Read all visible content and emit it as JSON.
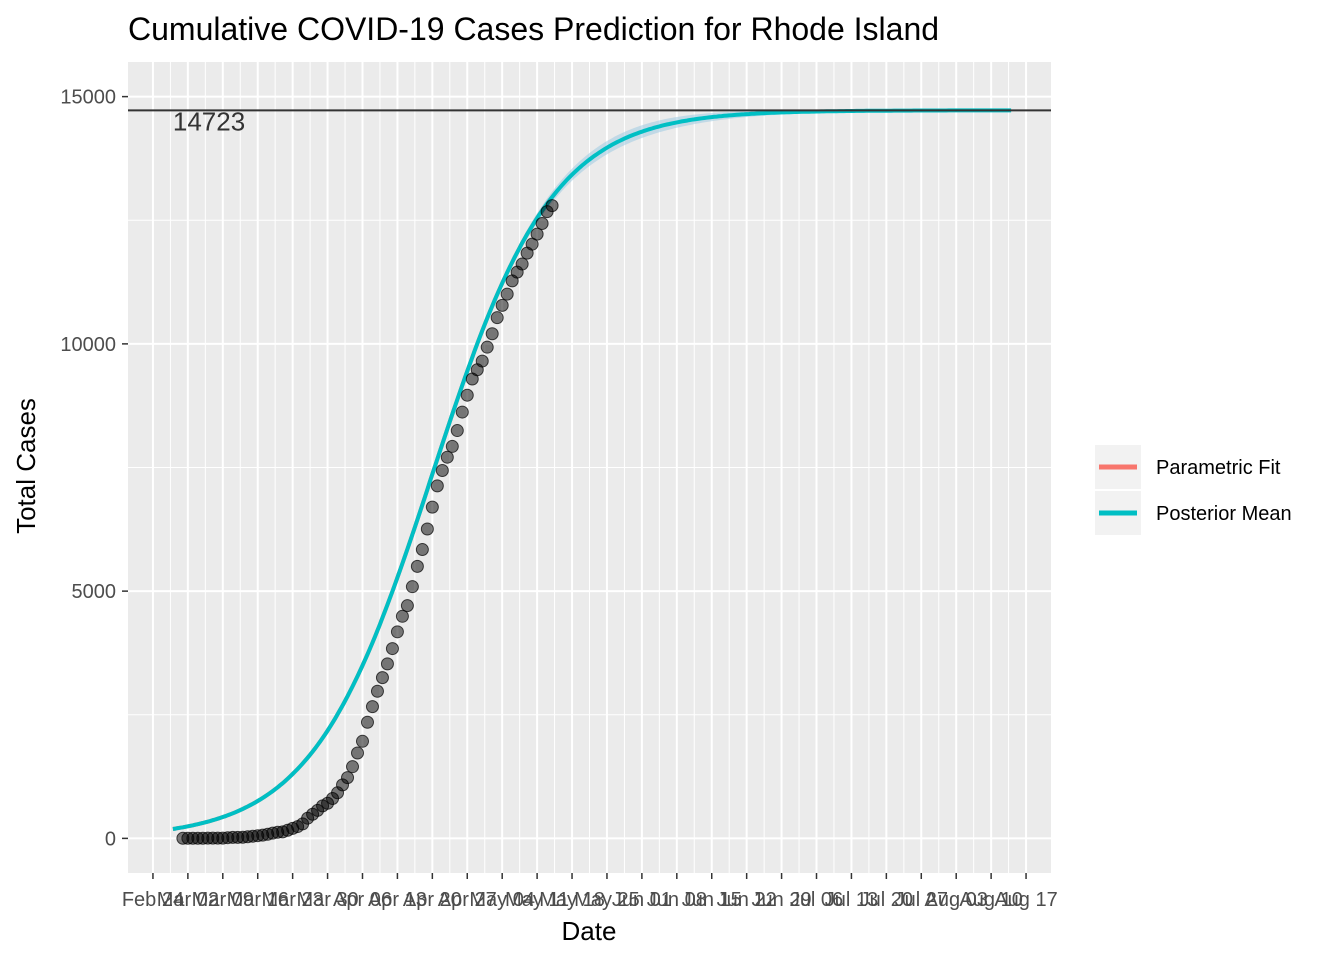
{
  "chart_data": {
    "type": "line",
    "title": "Cumulative COVID-19 Cases Prediction for Rhode Island",
    "xlabel": "Date",
    "ylabel": "Total Cases",
    "ylim": [
      -700,
      15700
    ],
    "xlim": [
      "2020-02-19",
      "2020-08-22"
    ],
    "y_ticks": [
      0,
      5000,
      10000,
      15000
    ],
    "x_ticks": [
      {
        "date": "2020-02-24",
        "label": "Feb 24"
      },
      {
        "date": "2020-03-02",
        "label": "Mar 02"
      },
      {
        "date": "2020-03-09",
        "label": "Mar 09"
      },
      {
        "date": "2020-03-16",
        "label": "Mar 16"
      },
      {
        "date": "2020-03-23",
        "label": "Mar 23"
      },
      {
        "date": "2020-03-30",
        "label": "Mar 30"
      },
      {
        "date": "2020-04-06",
        "label": "Apr 06"
      },
      {
        "date": "2020-04-13",
        "label": "Apr 13"
      },
      {
        "date": "2020-04-20",
        "label": "Apr 20"
      },
      {
        "date": "2020-04-27",
        "label": "Apr 27"
      },
      {
        "date": "2020-05-04",
        "label": "May 04"
      },
      {
        "date": "2020-05-11",
        "label": "May 11"
      },
      {
        "date": "2020-05-18",
        "label": "May 18"
      },
      {
        "date": "2020-05-25",
        "label": "May 25"
      },
      {
        "date": "2020-06-01",
        "label": "Jun 01"
      },
      {
        "date": "2020-06-08",
        "label": "Jun 08"
      },
      {
        "date": "2020-06-15",
        "label": "Jun 15"
      },
      {
        "date": "2020-06-22",
        "label": "Jun 22"
      },
      {
        "date": "2020-06-29",
        "label": "Jun 29"
      },
      {
        "date": "2020-07-06",
        "label": "Jul 06"
      },
      {
        "date": "2020-07-13",
        "label": "Jul 13"
      },
      {
        "date": "2020-07-20",
        "label": "Jul 20"
      },
      {
        "date": "2020-07-27",
        "label": "Jul 27"
      },
      {
        "date": "2020-08-03",
        "label": "Aug 03"
      },
      {
        "date": "2020-08-10",
        "label": "Aug 10"
      },
      {
        "date": "2020-08-17",
        "label": "Aug 17"
      }
    ],
    "grid": true,
    "legend": {
      "placement": "right",
      "entries": [
        {
          "name": "Parametric Fit",
          "color": "#F8766D"
        },
        {
          "name": "Posterior Mean",
          "color": "#00BFC4"
        }
      ]
    },
    "hline": {
      "value": 14723,
      "label": "14723",
      "color": "#333333"
    },
    "observed_points": {
      "start_date": "2020-03-01",
      "values": [
        2,
        2,
        2,
        3,
        3,
        5,
        5,
        5,
        5,
        14,
        20,
        20,
        23,
        33,
        44,
        54,
        66,
        83,
        106,
        124,
        132,
        165,
        203,
        239,
        294,
        408,
        488,
        566,
        657,
        711,
        806,
        922,
        1082,
        1229,
        1450,
        1727,
        1963,
        2349,
        2665,
        2976,
        3251,
        3529,
        3838,
        4177,
        4491,
        4706,
        5090,
        5500,
        5841,
        6256,
        6699,
        7129,
        7439,
        7708,
        7926,
        8247,
        8621,
        8962,
        9289,
        9477,
        9652,
        9933,
        10205,
        10530,
        10779,
        11006,
        11274,
        11450,
        11614,
        11835,
        12016,
        12219,
        12434,
        12674,
        12795
      ]
    },
    "series": [
      {
        "name": "Parametric Fit",
        "color": "#F8766D",
        "x_start": "2020-02-28",
        "x_end": "2020-05-15",
        "model": "logistic",
        "cap": 14723,
        "midpoint": "2020-04-20",
        "scale_days": 12
      },
      {
        "name": "Posterior Mean",
        "color": "#00BFC4",
        "x_start": "2020-02-28",
        "x_end": "2020-08-14",
        "model": "logistic",
        "cap": 14723,
        "midpoint": "2020-04-20",
        "scale_days": 12,
        "band": {
          "color": "#9ecae1"
        }
      }
    ]
  }
}
